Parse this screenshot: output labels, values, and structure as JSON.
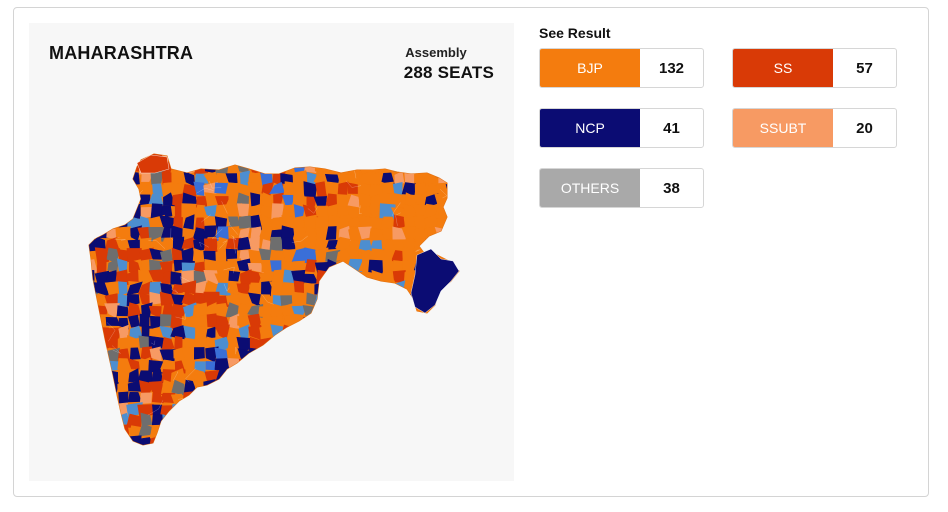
{
  "map": {
    "state": "MAHARASHTRA",
    "assembly_label": "Assembly",
    "seats_label": "288 SEATS"
  },
  "results": {
    "heading": "See Result",
    "parties": [
      {
        "name": "BJP",
        "seats": "132",
        "color": "#f47c0e"
      },
      {
        "name": "SS",
        "seats": "57",
        "color": "#d93a06"
      },
      {
        "name": "NCP",
        "seats": "41",
        "color": "#0b0c73"
      },
      {
        "name": "SSUBT",
        "seats": "20",
        "color": "#f79a63"
      },
      {
        "name": "OTHERS",
        "seats": "38",
        "color": "#a9a9a9"
      }
    ]
  },
  "legend_colors": {
    "BJP": "#f47c0e",
    "SS": "#d93a06",
    "NCP": "#0b0c73",
    "SSUBT": "#f79a63",
    "NCP_SP": "#3a6fd8",
    "INC": "#4d8ed0",
    "OTHERS": "#6e6e6e",
    "background": "#f7f7f7"
  }
}
